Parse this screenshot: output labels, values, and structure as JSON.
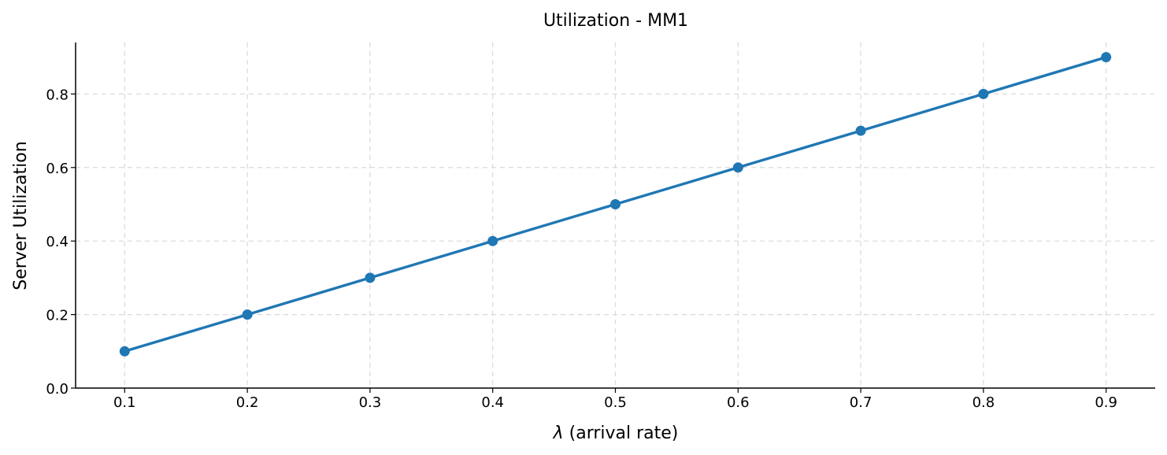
{
  "chart_data": {
    "type": "line",
    "title": "Utilization - MM1",
    "xlabel_symbol": "λ",
    "xlabel_text": " (arrival rate)",
    "ylabel": "Server Utilization",
    "x": [
      0.1,
      0.2,
      0.3,
      0.4,
      0.5,
      0.6,
      0.7,
      0.8,
      0.9
    ],
    "series": [
      {
        "values": [
          0.1,
          0.2,
          0.3,
          0.4,
          0.5,
          0.6,
          0.7,
          0.8,
          0.9
        ],
        "color": "#1f77b4"
      }
    ],
    "xlim": [
      0.06,
      0.94
    ],
    "ylim": [
      0.0,
      0.94
    ],
    "xticks": [
      0.1,
      0.2,
      0.3,
      0.4,
      0.5,
      0.6,
      0.7,
      0.8,
      0.9
    ],
    "xtick_labels": [
      "0.1",
      "0.2",
      "0.3",
      "0.4",
      "0.5",
      "0.6",
      "0.7",
      "0.8",
      "0.9"
    ],
    "yticks": [
      0.0,
      0.2,
      0.4,
      0.6,
      0.8
    ],
    "ytick_labels": [
      "0.0",
      "0.2",
      "0.4",
      "0.6",
      "0.8"
    ],
    "grid": true
  }
}
